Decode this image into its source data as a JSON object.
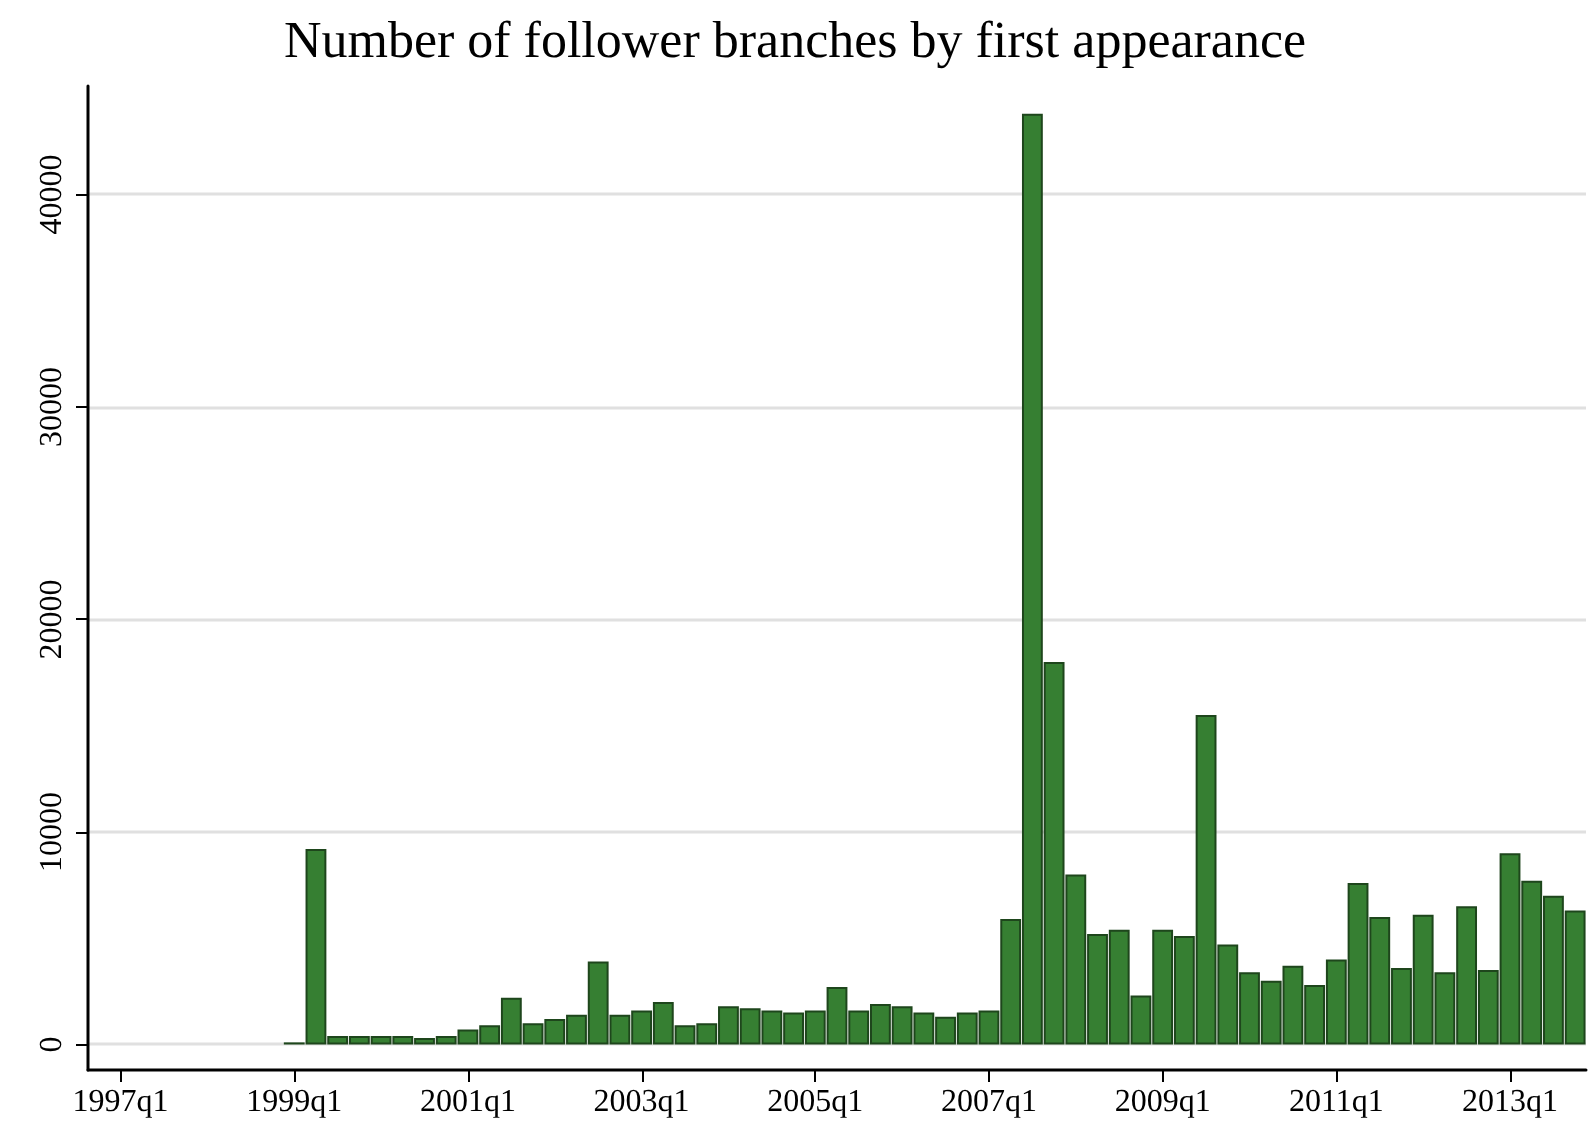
{
  "chart_data": {
    "type": "bar",
    "title": "Number of follower branches by first appearance",
    "categories": [
      null,
      "1997q1",
      null,
      null,
      null,
      null,
      null,
      null,
      null,
      "1999q1",
      null,
      null,
      null,
      null,
      null,
      null,
      null,
      "2001q1",
      null,
      null,
      null,
      null,
      null,
      null,
      null,
      "2003q1",
      null,
      null,
      null,
      null,
      null,
      null,
      null,
      "2005q1",
      null,
      null,
      null,
      null,
      null,
      null,
      null,
      "2007q1",
      null,
      null,
      null,
      null,
      null,
      null,
      null,
      "2009q1",
      null,
      null,
      null,
      null,
      null,
      null,
      null,
      "2011q1",
      null,
      null,
      null,
      null,
      null,
      null,
      null,
      "2013q1",
      null,
      null,
      null
    ],
    "values": [
      null,
      null,
      null,
      null,
      null,
      null,
      null,
      null,
      null,
      100,
      9200,
      400,
      400,
      400,
      400,
      300,
      400,
      700,
      900,
      2200,
      1000,
      1200,
      1400,
      3900,
      1400,
      1600,
      2000,
      900,
      1000,
      1800,
      1700,
      1600,
      1500,
      1600,
      2700,
      1600,
      1900,
      1800,
      1500,
      1300,
      1500,
      1600,
      5900,
      43800,
      18000,
      8000,
      5200,
      5400,
      2300,
      5400,
      5100,
      15500,
      4700,
      3400,
      3000,
      3700,
      2800,
      4000,
      7600,
      6000,
      3600,
      6100,
      3400,
      6500,
      3500,
      9000,
      7700,
      7000,
      6300
    ],
    "color": "#367f32",
    "ylim": [
      -1200,
      45100
    ],
    "yticks": [
      0,
      10000,
      20000,
      30000,
      40000
    ],
    "grid": "y"
  }
}
